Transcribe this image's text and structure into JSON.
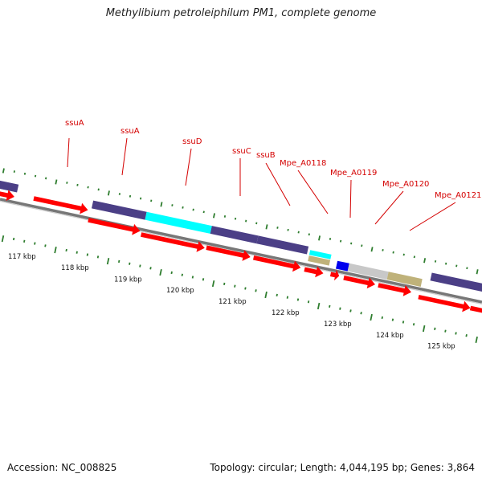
{
  "title": "Methylibium petroleiphilum PM1, complete genome",
  "footer": {
    "accession": "Accession: NC_008825",
    "stats": "Topology: circular; Length: 4,044,195 bp; Genes: 3,864"
  },
  "colors": {
    "cds_arrow": "#ff0000",
    "gene_dark": "#4b3f86",
    "gene_cyan": "#00ffff",
    "gene_blue": "#0000ee",
    "gene_gray": "#c8c8c8",
    "gene_khaki": "#bfb27a",
    "label_red": "#d40000",
    "tick_green": "#2e7d2e",
    "backbone": "#777777"
  },
  "kbp_labels": [
    "117 kbp",
    "118 kbp",
    "119 kbp",
    "120 kbp",
    "121 kbp",
    "122 kbp",
    "123 kbp",
    "124 kbp",
    "125 kbp"
  ],
  "gene_labels": [
    "ssuA",
    "ssuA",
    "ssuD",
    "ssuC",
    "ssuB",
    "Mpe_A0118",
    "Mpe_A0119",
    "Mpe_A0120",
    "Mpe_A0121"
  ]
}
